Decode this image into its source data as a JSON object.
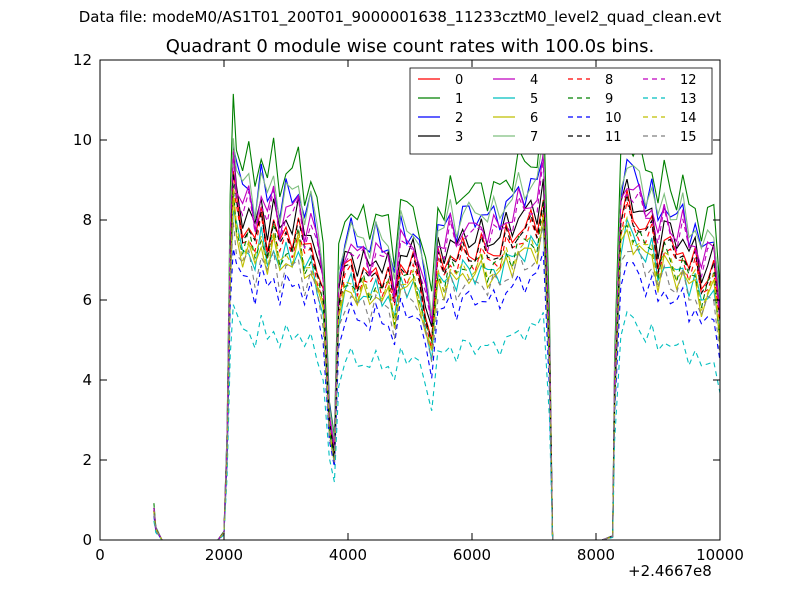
{
  "suptitle": "Data file: modeM0/AS1T01_200T01_9000001638_11233cztM0_level2_quad_clean.evt",
  "chart_data": {
    "type": "line",
    "title": "Quadrant 0 module wise count rates with 100.0s bins.",
    "xlabel": "",
    "ylabel": "",
    "x_offset_label": "+2.4667e8",
    "xlim": [
      0,
      10000
    ],
    "ylim": [
      0,
      12
    ],
    "xticks": [
      "0",
      "2000",
      "4000",
      "6000",
      "8000",
      "10000"
    ],
    "yticks": [
      "0",
      "2",
      "4",
      "6",
      "8",
      "10",
      "12"
    ],
    "legend_position": "top-right",
    "legend_columns": 4,
    "series": [
      {
        "name": "0",
        "color": "#ff0000",
        "dash": "solid",
        "scale": 0.93
      },
      {
        "name": "1",
        "color": "#008000",
        "dash": "solid",
        "scale": 1.12
      },
      {
        "name": "2",
        "color": "#0000ff",
        "dash": "solid",
        "scale": 1.04
      },
      {
        "name": "3",
        "color": "#000000",
        "dash": "solid",
        "scale": 0.97
      },
      {
        "name": "4",
        "color": "#bf00bf",
        "dash": "solid",
        "scale": 1.0
      },
      {
        "name": "5",
        "color": "#00bfbf",
        "dash": "solid",
        "scale": 0.86
      },
      {
        "name": "6",
        "color": "#bfbf00",
        "dash": "solid",
        "scale": 0.85
      },
      {
        "name": "7",
        "color": "#7fbf7f",
        "dash": "solid",
        "scale": 1.05
      },
      {
        "name": "8",
        "color": "#ff0000",
        "dash": "dashed",
        "scale": 0.9
      },
      {
        "name": "9",
        "color": "#008000",
        "dash": "dashed",
        "scale": 0.88
      },
      {
        "name": "10",
        "color": "#0000ff",
        "dash": "dashed",
        "scale": 0.77
      },
      {
        "name": "11",
        "color": "#000000",
        "dash": "dashed",
        "scale": 0.92
      },
      {
        "name": "12",
        "color": "#bf00bf",
        "dash": "dashed",
        "scale": 0.98
      },
      {
        "name": "13",
        "color": "#00bfbf",
        "dash": "dashed",
        "scale": 0.62
      },
      {
        "name": "14",
        "color": "#bfbf00",
        "dash": "dashed",
        "scale": 0.87
      },
      {
        "name": "15",
        "color": "#7f7f7f",
        "dash": "dashed",
        "scale": 0.82
      }
    ],
    "base_profile": {
      "x": [
        870,
        900,
        1000,
        1100,
        1200,
        1300,
        1400,
        1500,
        1600,
        1700,
        1800,
        1900,
        2000,
        2050,
        2100,
        2150,
        2200,
        2300,
        2400,
        2500,
        2600,
        2700,
        2800,
        2900,
        3000,
        3100,
        3200,
        3300,
        3400,
        3500,
        3600,
        3700,
        3780,
        3850,
        3950,
        4050,
        4150,
        4250,
        4350,
        4450,
        4550,
        4650,
        4750,
        4850,
        4950,
        5050,
        5150,
        5250,
        5350,
        5450,
        5550,
        5650,
        5750,
        5850,
        5950,
        6050,
        6150,
        6250,
        6350,
        6450,
        6550,
        6650,
        6750,
        6850,
        6950,
        7050,
        7150,
        7250,
        7300,
        7500,
        7800,
        8100,
        8270,
        8300,
        8400,
        8500,
        8600,
        8700,
        8800,
        8900,
        9000,
        9100,
        9200,
        9300,
        9400,
        9500,
        9600,
        9700,
        9800,
        9900,
        10000
      ],
      "y": [
        0.8,
        0.3,
        0,
        0,
        0,
        0,
        0,
        0,
        0,
        0,
        0,
        0,
        0.2,
        2.5,
        7.5,
        9.8,
        9.0,
        8.3,
        8.6,
        7.9,
        8.8,
        8.0,
        8.7,
        7.8,
        8.4,
        8.1,
        8.6,
        7.7,
        8.1,
        7.4,
        6.6,
        3.2,
        2.3,
        6.4,
        7.2,
        7.5,
        7.0,
        7.3,
        6.9,
        7.4,
        7.0,
        7.2,
        6.3,
        7.6,
        7.3,
        7.5,
        7.0,
        6.2,
        5.4,
        7.6,
        7.3,
        7.9,
        7.4,
        7.9,
        7.8,
        7.7,
        8.0,
        7.6,
        7.9,
        7.7,
        8.2,
        8.0,
        8.5,
        8.3,
        8.6,
        8.4,
        9.4,
        5.0,
        0,
        0,
        0,
        0,
        0.1,
        4.0,
        8.5,
        9.1,
        8.7,
        8.6,
        8.2,
        8.5,
        7.5,
        8.2,
        7.9,
        7.6,
        8.0,
        7.3,
        7.6,
        6.8,
        7.2,
        7.4,
        5.8
      ]
    }
  }
}
